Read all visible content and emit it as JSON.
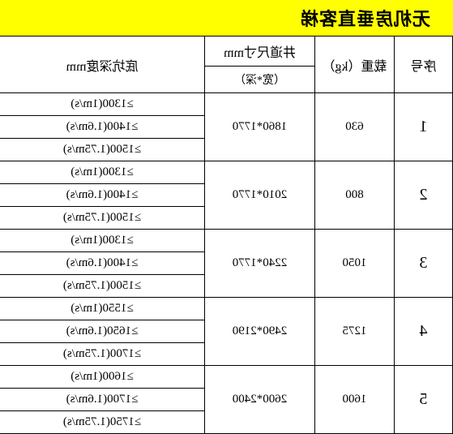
{
  "title": "无机房垂直客梯",
  "headers": {
    "seq": "序号",
    "load": "载重（kg）",
    "shaft_top": "井道尺寸mm",
    "shaft_sub": "（宽*深）",
    "pit": "底坑深度mm"
  },
  "rows": [
    {
      "seq": "1",
      "load": "630",
      "shaft": "1860*1770",
      "pits": [
        "≥1300(1m/s)",
        "≥1400(1.6m/s)",
        "≥1500(1.75m/s)"
      ]
    },
    {
      "seq": "2",
      "load": "800",
      "shaft": "2010*1770",
      "pits": [
        "≥1300(1m/s)",
        "≥1400(1.6m/s)",
        "≥1500(1.75m/s)"
      ]
    },
    {
      "seq": "3",
      "load": "1050",
      "shaft": "2240*1770",
      "pits": [
        "≥1300(1m/s)",
        "≥1400(1.6m/s)",
        "≥1500(1.75m/s)"
      ]
    },
    {
      "seq": "4",
      "load": "1275",
      "shaft": "2490*2190",
      "pits": [
        "≥1550(1m/s)",
        "≥1650(1.6m/s)",
        "≥1700(1.75m/s)"
      ]
    },
    {
      "seq": "5",
      "load": "1600",
      "shaft": "2600*2400",
      "pits": [
        "≥1600(1m/s)",
        "≥1700(1.6m/s)",
        "≥1750(1.75m/s)"
      ]
    }
  ]
}
